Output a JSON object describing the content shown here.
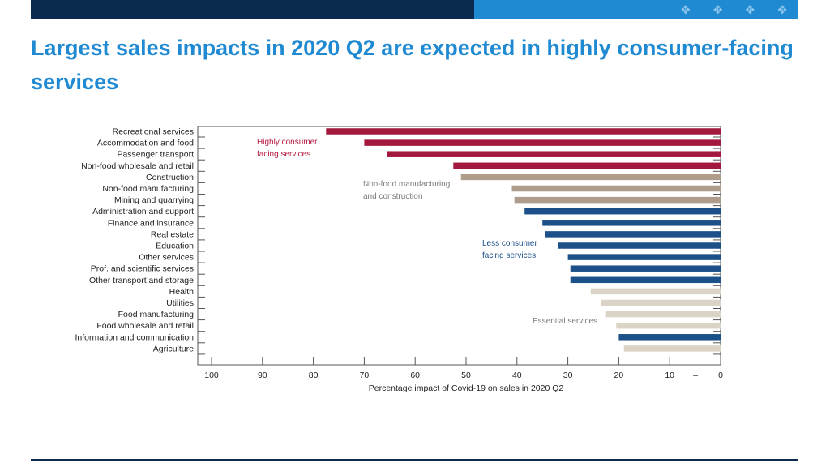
{
  "header": {
    "pattern_icons": [
      "✥",
      "✥",
      "✥",
      "✥"
    ]
  },
  "title": "Largest sales impacts in 2020 Q2 are expected in highly consumer-facing services",
  "chart_data": {
    "type": "bar",
    "orientation": "horizontal",
    "xlabel": "Percentage impact of Covid-19 on sales in 2020 Q2",
    "xlim": [
      100,
      0
    ],
    "xticks": [
      "100",
      "90",
      "80",
      "70",
      "60",
      "50",
      "40",
      "30",
      "20",
      "10",
      "–",
      "0"
    ],
    "categories": [
      "Recreational services",
      "Accommodation and food",
      "Passenger transport",
      "Non-food wholesale and retail",
      "Construction",
      "Non-food manufacturing",
      "Mining and quarrying",
      "Administration and support",
      "Finance and insurance",
      "Real estate",
      "Education",
      "Other services",
      "Prof. and scientific services",
      "Other transport and storage",
      "Health",
      "Utilities",
      "Food manufacturing",
      "Food wholesale and retail",
      "Information and communication",
      "Agriculture"
    ],
    "values": [
      77.5,
      70,
      65.5,
      52.5,
      51,
      41,
      40.5,
      38.5,
      35,
      34.5,
      32,
      30,
      29.5,
      29.5,
      25.5,
      23.5,
      22.5,
      20.5,
      20,
      19
    ],
    "groups": [
      "highly",
      "highly",
      "highly",
      "highly",
      "nonfood",
      "nonfood",
      "nonfood",
      "less",
      "less",
      "less",
      "less",
      "less",
      "less",
      "less",
      "essential",
      "essential",
      "essential",
      "essential",
      "less",
      "essential"
    ],
    "colors": {
      "highly": "#a3183d",
      "nonfood": "#ad9d8a",
      "less": "#1b5089",
      "essential": "#dcd3c7"
    },
    "annotations": [
      {
        "group": "highly",
        "lines": [
          "Highly consumer",
          "facing services"
        ]
      },
      {
        "group": "nonfood",
        "lines": [
          "Non-food manufacturing",
          "and construction"
        ]
      },
      {
        "group": "less",
        "lines": [
          "Less consumer",
          "facing services"
        ]
      },
      {
        "group": "essential",
        "lines": [
          "Essential services"
        ]
      }
    ]
  }
}
